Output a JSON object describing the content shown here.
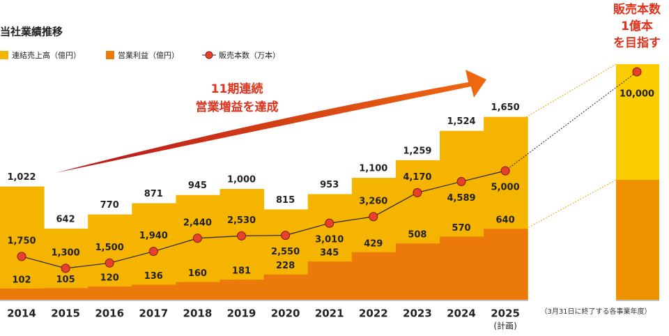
{
  "chart_data": {
    "type": "bar",
    "title": "当社業績推移",
    "categories": [
      "2014",
      "2015",
      "2016",
      "2017",
      "2018",
      "2019",
      "2020",
      "2021",
      "2022",
      "2023",
      "2024",
      "2025"
    ],
    "plan_note": "(計画)",
    "series": [
      {
        "name": "連結売上高（億円）",
        "color": "#f5b400",
        "values": [
          1022,
          642,
          770,
          871,
          945,
          1000,
          815,
          953,
          1100,
          1259,
          1524,
          1650
        ],
        "value_labels": [
          "1,022",
          "642",
          "770",
          "871",
          "945",
          "1,000",
          "815",
          "953",
          "1,100",
          "1,259",
          "1,524",
          "1,650"
        ]
      },
      {
        "name": "営業利益（億円）",
        "color": "#ec7a0a",
        "values": [
          102,
          105,
          120,
          136,
          160,
          181,
          228,
          345,
          429,
          508,
          570,
          640
        ]
      },
      {
        "name": "販売本数（万本）",
        "type": "line",
        "color": "#e8402a",
        "values": [
          1750,
          1300,
          1500,
          1940,
          2440,
          2530,
          2550,
          3010,
          3260,
          4170,
          4589,
          5000
        ],
        "value_labels": [
          "1,750",
          "1,300",
          "1,500",
          "1,940",
          "2,440",
          "2,530",
          "2,550",
          "3,010",
          "3,260",
          "4,170",
          "4,589",
          "5,000"
        ]
      }
    ],
    "annotation": [
      "11期連続",
      "営業増益を達成"
    ],
    "target": {
      "heading": [
        "販売本数",
        "1億本",
        "を目指す"
      ],
      "value": 10000,
      "value_label": "10,000"
    },
    "footnote": "（3月31日に終了する各事業年度）"
  }
}
